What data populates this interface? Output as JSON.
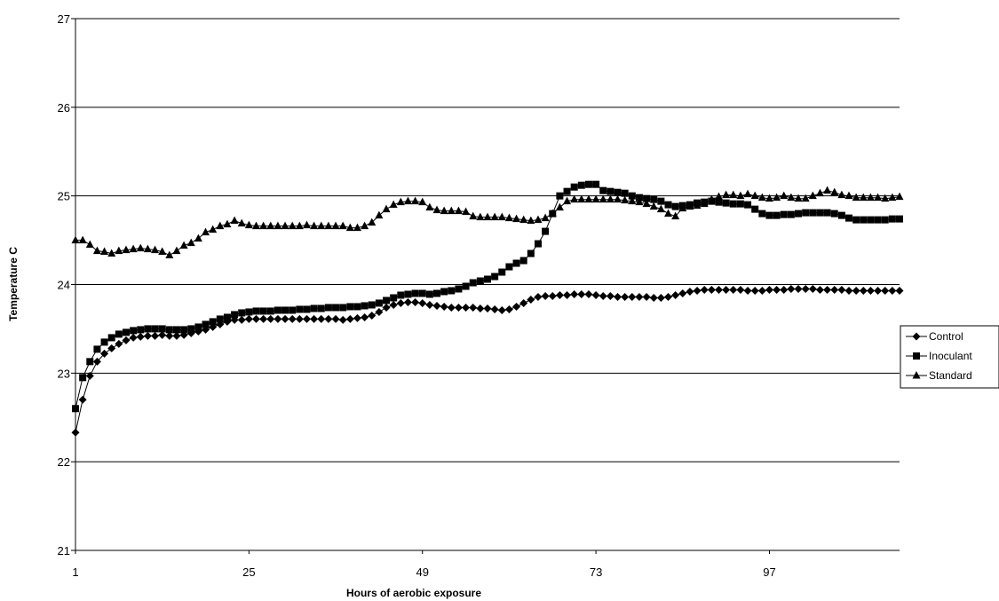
{
  "chart_data": {
    "type": "line",
    "title": "",
    "xlabel": "Hours of aerobic exposure",
    "ylabel": "Temperature C",
    "xlim": [
      1,
      115
    ],
    "ylim": [
      21,
      27
    ],
    "grid": true,
    "legend_position": "right",
    "x_tick_labels": [
      "1",
      "25",
      "49",
      "73",
      "97"
    ],
    "y_tick_labels": [
      "21",
      "22",
      "23",
      "24",
      "25",
      "26",
      "27"
    ],
    "series": [
      {
        "name": "Control",
        "marker": "diamond",
        "x": [
          1,
          2,
          3,
          4,
          5,
          6,
          7,
          8,
          9,
          10,
          11,
          12,
          13,
          14,
          15,
          16,
          17,
          18,
          19,
          20,
          21,
          22,
          23,
          24,
          25,
          26,
          27,
          28,
          29,
          30,
          31,
          32,
          33,
          34,
          35,
          36,
          37,
          38,
          39,
          40,
          41,
          42,
          43,
          44,
          45,
          46,
          47,
          48,
          49,
          50,
          51,
          52,
          53,
          54,
          55,
          56,
          57,
          58,
          59,
          60,
          61,
          62,
          63,
          64,
          65,
          66,
          67,
          68,
          69,
          70,
          71,
          72,
          73,
          74,
          75,
          76,
          77,
          78,
          79,
          80,
          81,
          82,
          83,
          84,
          85,
          86,
          87,
          88,
          89,
          90,
          91,
          92,
          93,
          94,
          95,
          96,
          97,
          98,
          99,
          100,
          101,
          102,
          103,
          104,
          105,
          106,
          107,
          108,
          109,
          110,
          111,
          112,
          113,
          114,
          115
        ],
        "values": [
          22.33,
          22.7,
          22.97,
          23.13,
          23.22,
          23.28,
          23.33,
          23.37,
          23.4,
          23.41,
          23.42,
          23.42,
          23.43,
          23.42,
          23.42,
          23.43,
          23.45,
          23.47,
          23.49,
          23.52,
          23.55,
          23.58,
          23.6,
          23.6,
          23.61,
          23.61,
          23.61,
          23.61,
          23.61,
          23.61,
          23.61,
          23.61,
          23.61,
          23.61,
          23.61,
          23.61,
          23.61,
          23.6,
          23.61,
          23.62,
          23.63,
          23.65,
          23.69,
          23.74,
          23.77,
          23.79,
          23.8,
          23.8,
          23.79,
          23.77,
          23.76,
          23.75,
          23.74,
          23.74,
          23.74,
          23.74,
          23.73,
          23.73,
          23.72,
          23.71,
          23.72,
          23.75,
          23.79,
          23.83,
          23.86,
          23.87,
          23.87,
          23.88,
          23.88,
          23.89,
          23.89,
          23.89,
          23.88,
          23.87,
          23.87,
          23.86,
          23.86,
          23.86,
          23.86,
          23.86,
          23.85,
          23.85,
          23.86,
          23.88,
          23.9,
          23.92,
          23.93,
          23.94,
          23.94,
          23.94,
          23.94,
          23.94,
          23.94,
          23.93,
          23.93,
          23.93,
          23.94,
          23.94,
          23.94,
          23.95,
          23.95,
          23.95,
          23.95,
          23.94,
          23.94,
          23.94,
          23.94,
          23.93,
          23.93,
          23.93,
          23.93,
          23.93,
          23.93,
          23.93,
          23.93
        ]
      },
      {
        "name": "Inoculant",
        "marker": "square",
        "x": [
          1,
          2,
          3,
          4,
          5,
          6,
          7,
          8,
          9,
          10,
          11,
          12,
          13,
          14,
          15,
          16,
          17,
          18,
          19,
          20,
          21,
          22,
          23,
          24,
          25,
          26,
          27,
          28,
          29,
          30,
          31,
          32,
          33,
          34,
          35,
          36,
          37,
          38,
          39,
          40,
          41,
          42,
          43,
          44,
          45,
          46,
          47,
          48,
          49,
          50,
          51,
          52,
          53,
          54,
          55,
          56,
          57,
          58,
          59,
          60,
          61,
          62,
          63,
          64,
          65,
          66,
          67,
          68,
          69,
          70,
          71,
          72,
          73,
          74,
          75,
          76,
          77,
          78,
          79,
          80,
          81,
          82,
          83,
          84,
          85,
          86,
          87,
          88,
          89,
          90,
          91,
          92,
          93,
          94,
          95,
          96,
          97,
          98,
          99,
          100,
          101,
          102,
          103,
          104,
          105,
          106,
          107,
          108,
          109,
          110,
          111,
          112,
          113,
          114,
          115
        ],
        "values": [
          22.6,
          22.95,
          23.13,
          23.27,
          23.35,
          23.4,
          23.44,
          23.46,
          23.48,
          23.49,
          23.5,
          23.5,
          23.5,
          23.49,
          23.49,
          23.49,
          23.5,
          23.52,
          23.55,
          23.58,
          23.61,
          23.63,
          23.66,
          23.68,
          23.69,
          23.7,
          23.7,
          23.7,
          23.71,
          23.71,
          23.71,
          23.72,
          23.72,
          23.73,
          23.73,
          23.74,
          23.74,
          23.74,
          23.75,
          23.75,
          23.76,
          23.77,
          23.79,
          23.82,
          23.85,
          23.88,
          23.89,
          23.9,
          23.9,
          23.89,
          23.9,
          23.92,
          23.93,
          23.95,
          23.98,
          24.02,
          24.04,
          24.06,
          24.09,
          24.14,
          24.2,
          24.24,
          24.27,
          24.35,
          24.46,
          24.6,
          24.8,
          25.0,
          25.05,
          25.1,
          25.12,
          25.13,
          25.13,
          25.06,
          25.05,
          25.04,
          25.03,
          25.0,
          24.98,
          24.97,
          24.96,
          24.94,
          24.9,
          24.88,
          24.89,
          24.9,
          24.92,
          24.93,
          24.94,
          24.93,
          24.92,
          24.91,
          24.91,
          24.9,
          24.85,
          24.8,
          24.78,
          24.78,
          24.79,
          24.79,
          24.8,
          24.81,
          24.81,
          24.81,
          24.81,
          24.8,
          24.78,
          24.75,
          24.73,
          24.73,
          24.73,
          24.73,
          24.73,
          24.74,
          24.74
        ]
      },
      {
        "name": "Standard",
        "marker": "triangle",
        "x": [
          1,
          2,
          3,
          4,
          5,
          6,
          7,
          8,
          9,
          10,
          11,
          12,
          13,
          14,
          15,
          16,
          17,
          18,
          19,
          20,
          21,
          22,
          23,
          24,
          25,
          26,
          27,
          28,
          29,
          30,
          31,
          32,
          33,
          34,
          35,
          36,
          37,
          38,
          39,
          40,
          41,
          42,
          43,
          44,
          45,
          46,
          47,
          48,
          49,
          50,
          51,
          52,
          53,
          54,
          55,
          56,
          57,
          58,
          59,
          60,
          61,
          62,
          63,
          64,
          65,
          66,
          67,
          68,
          69,
          70,
          71,
          72,
          73,
          74,
          75,
          76,
          77,
          78,
          79,
          80,
          81,
          82,
          83,
          84,
          85,
          86,
          87,
          88,
          89,
          90,
          91,
          92,
          93,
          94,
          95,
          96,
          97,
          98,
          99,
          100,
          101,
          102,
          103,
          104,
          105,
          106,
          107,
          108,
          109,
          110,
          111,
          112,
          113,
          114,
          115
        ],
        "values": [
          24.5,
          24.5,
          24.45,
          24.38,
          24.37,
          24.35,
          24.38,
          24.39,
          24.4,
          24.41,
          24.4,
          24.39,
          24.37,
          24.33,
          24.38,
          24.44,
          24.47,
          24.52,
          24.59,
          24.62,
          24.66,
          24.68,
          24.72,
          24.69,
          24.67,
          24.66,
          24.66,
          24.66,
          24.66,
          24.66,
          24.66,
          24.66,
          24.67,
          24.66,
          24.66,
          24.66,
          24.66,
          24.66,
          24.64,
          24.64,
          24.66,
          24.7,
          24.78,
          24.85,
          24.9,
          24.93,
          24.94,
          24.94,
          24.93,
          24.87,
          24.84,
          24.83,
          24.83,
          24.83,
          24.82,
          24.77,
          24.76,
          24.76,
          24.76,
          24.76,
          24.75,
          24.74,
          24.73,
          24.72,
          24.73,
          24.75,
          24.8,
          24.87,
          24.94,
          24.96,
          24.96,
          24.96,
          24.96,
          24.96,
          24.96,
          24.96,
          24.95,
          24.94,
          24.93,
          24.91,
          24.88,
          24.85,
          24.8,
          24.77,
          24.86,
          24.88,
          24.89,
          24.91,
          24.96,
          24.99,
          25.01,
          25.01,
          25.0,
          25.02,
          25.0,
          24.98,
          24.97,
          24.98,
          25.0,
          24.98,
          24.97,
          24.97,
          25.0,
          25.03,
          25.06,
          25.04,
          25.01,
          25.0,
          24.98,
          24.98,
          24.98,
          24.98,
          24.97,
          24.98,
          24.99
        ]
      }
    ]
  }
}
